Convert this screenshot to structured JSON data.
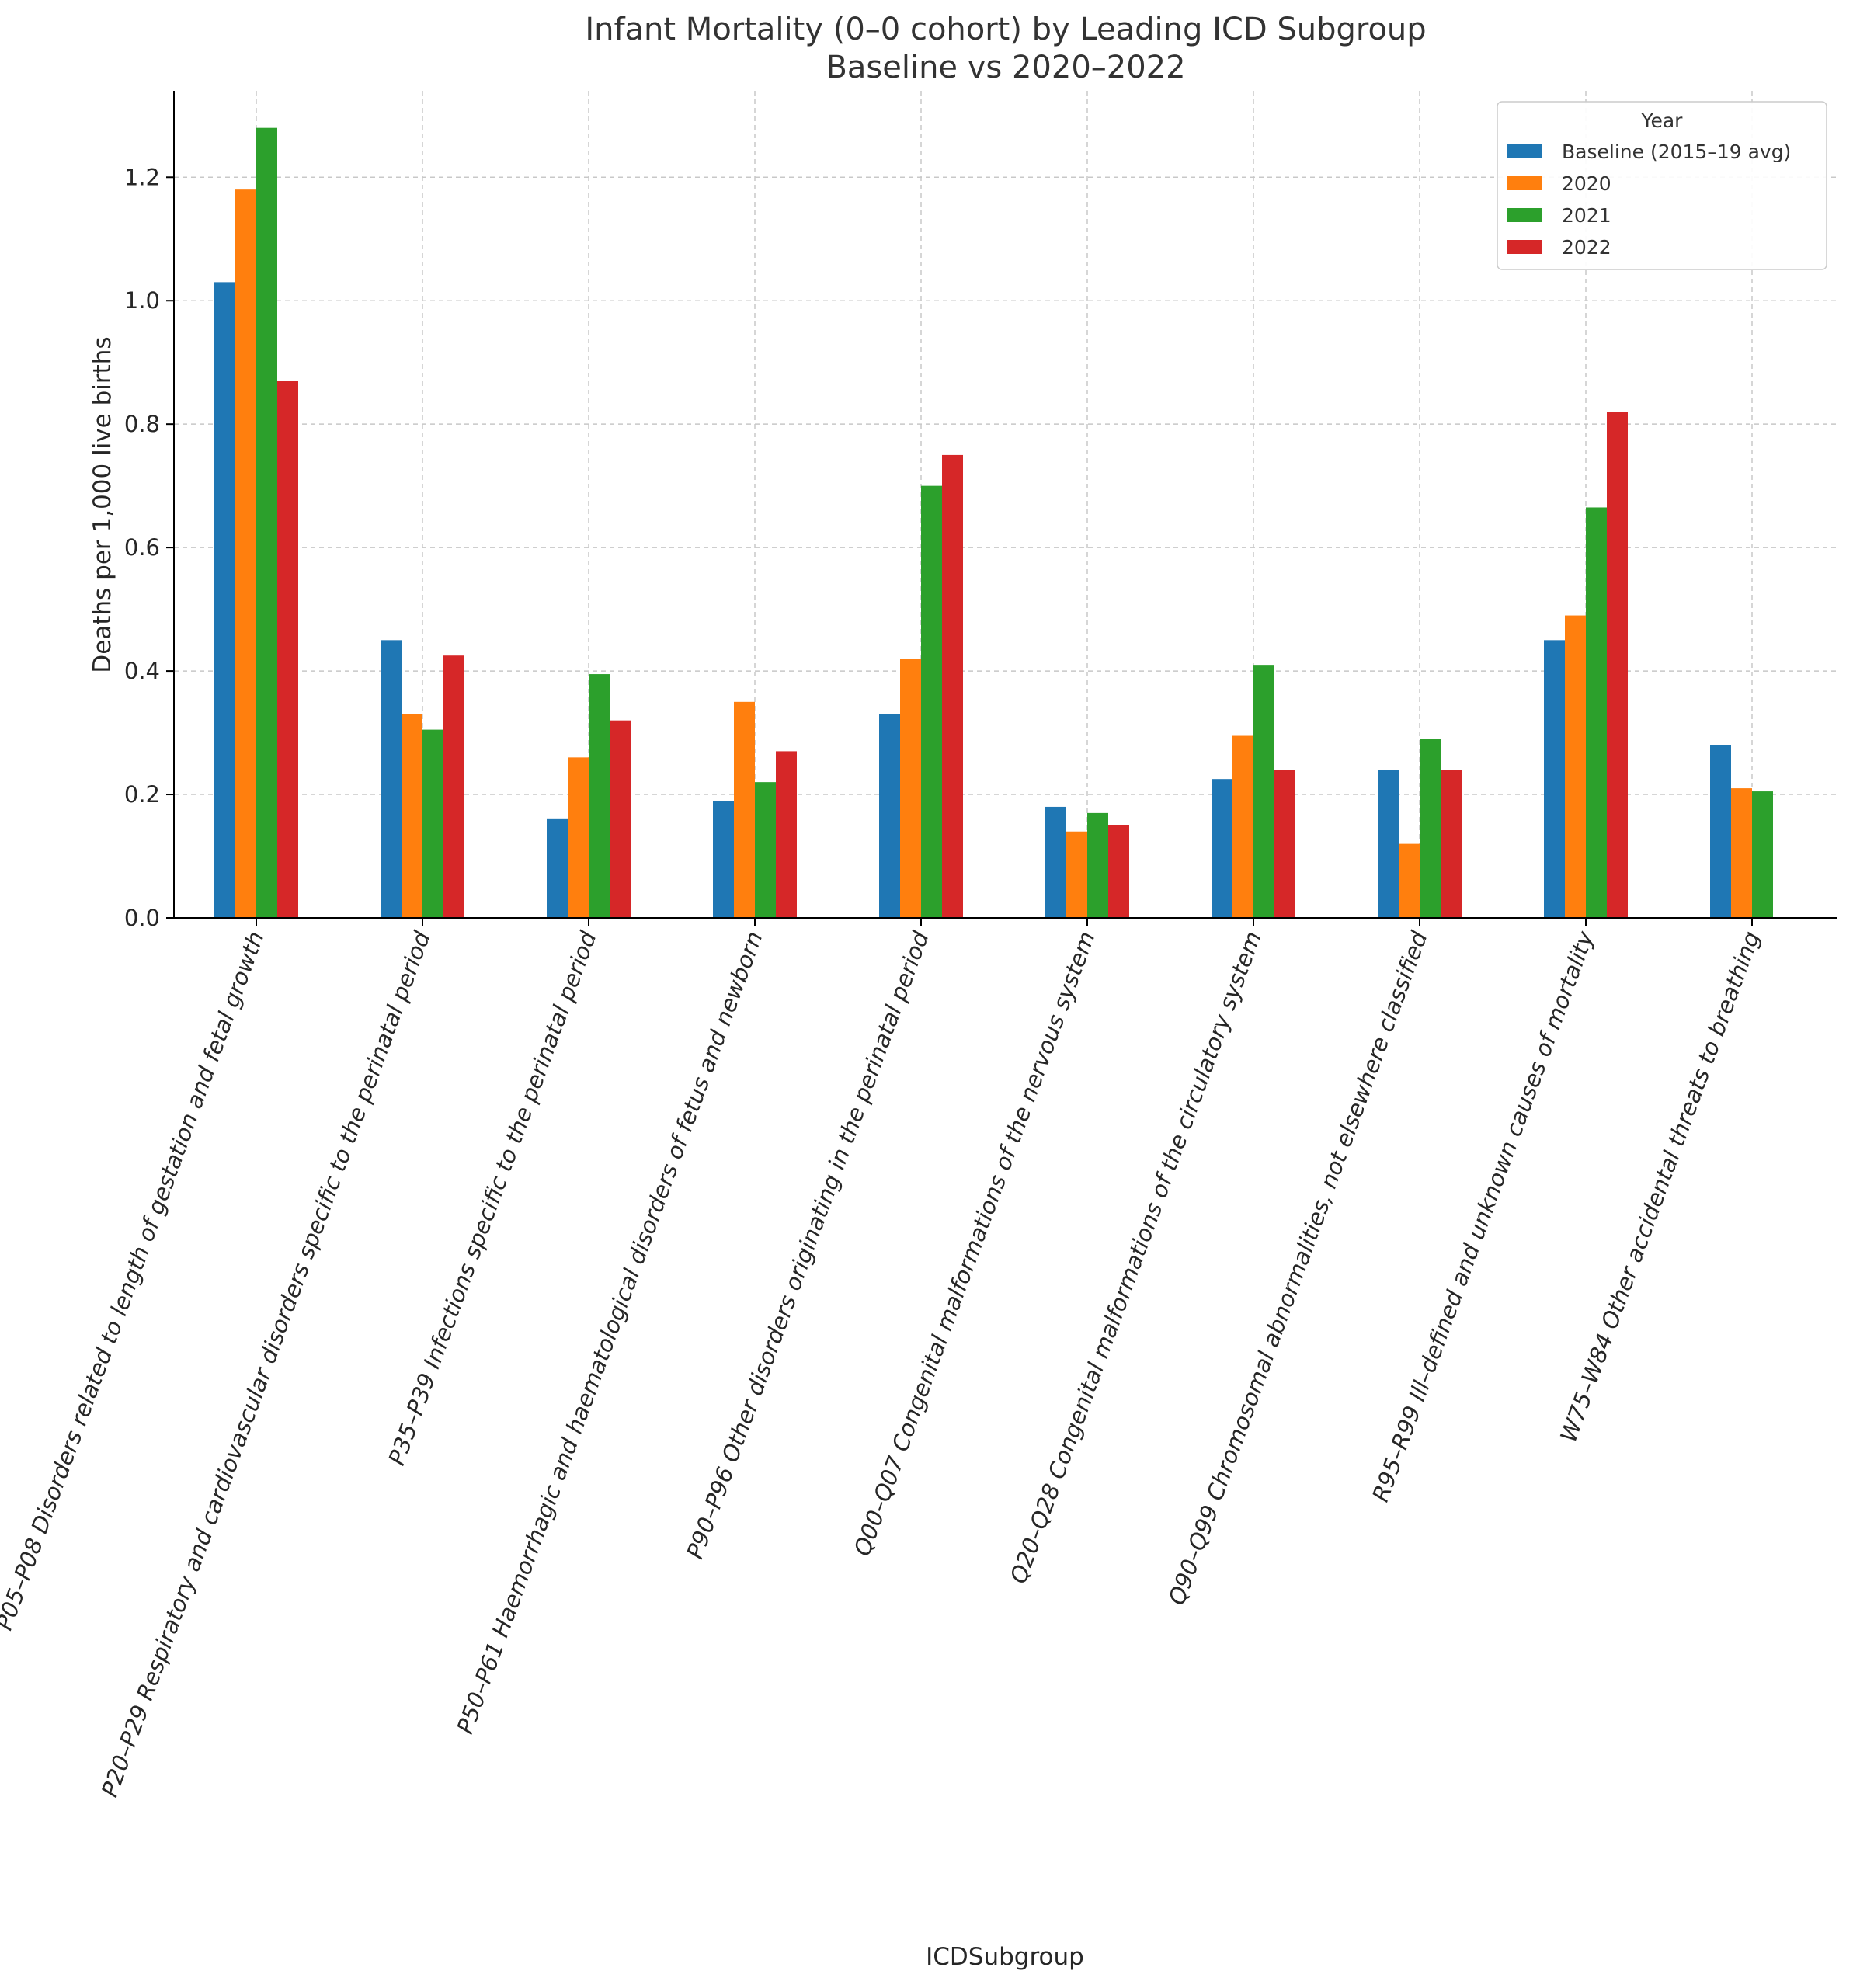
{
  "chart_data": {
    "type": "bar",
    "title": "Infant Mortality (0–0 cohort) by Leading ICD Subgroup",
    "subtitle": "Baseline vs 2020–2022",
    "xlabel": "ICDSubgroup",
    "ylabel": "Deaths per 1,000 live births",
    "ylim": [
      0,
      1.34
    ],
    "yticks": [
      0.0,
      0.2,
      0.4,
      0.6,
      0.8,
      1.0,
      1.2
    ],
    "ytick_labels": [
      "0.0",
      "0.2",
      "0.4",
      "0.6",
      "0.8",
      "1.0",
      "1.2"
    ],
    "grid": true,
    "legend": {
      "title": "Year",
      "placement": "top-right"
    },
    "categories": [
      "P05–P08 Disorders related to length of gestation and fetal growth",
      "P20–P29 Respiratory and cardiovascular disorders specific to the perinatal period",
      "P35–P39 Infections specific to the perinatal period",
      "P50–P61 Haemorrhagic and haematological disorders of fetus and newborn",
      "P90–P96 Other disorders originating in the perinatal period",
      "Q00–Q07 Congenital malformations of the nervous system",
      "Q20–Q28 Congenital malformations of the circulatory system",
      "Q90–Q99 Chromosomal abnormalities, not elsewhere classified",
      "R95–R99 Ill–defined and unknown causes of mortality",
      "W75–W84 Other accidental threats to breathing"
    ],
    "series": [
      {
        "name": "Baseline (2015–19 avg)",
        "color": "#1f77b4",
        "values": [
          1.03,
          0.45,
          0.16,
          0.19,
          0.33,
          0.18,
          0.225,
          0.24,
          0.45,
          0.28
        ]
      },
      {
        "name": "2020",
        "color": "#ff7f0e",
        "values": [
          1.18,
          0.33,
          0.26,
          0.35,
          0.42,
          0.14,
          0.295,
          0.12,
          0.49,
          0.21
        ]
      },
      {
        "name": "2021",
        "color": "#2ca02c",
        "values": [
          1.28,
          0.305,
          0.395,
          0.22,
          0.7,
          0.17,
          0.41,
          0.29,
          0.665,
          0.205
        ]
      },
      {
        "name": "2022",
        "color": "#d62728",
        "values": [
          0.87,
          0.425,
          0.32,
          0.27,
          0.75,
          0.15,
          0.24,
          0.24,
          0.82,
          null
        ]
      }
    ]
  }
}
